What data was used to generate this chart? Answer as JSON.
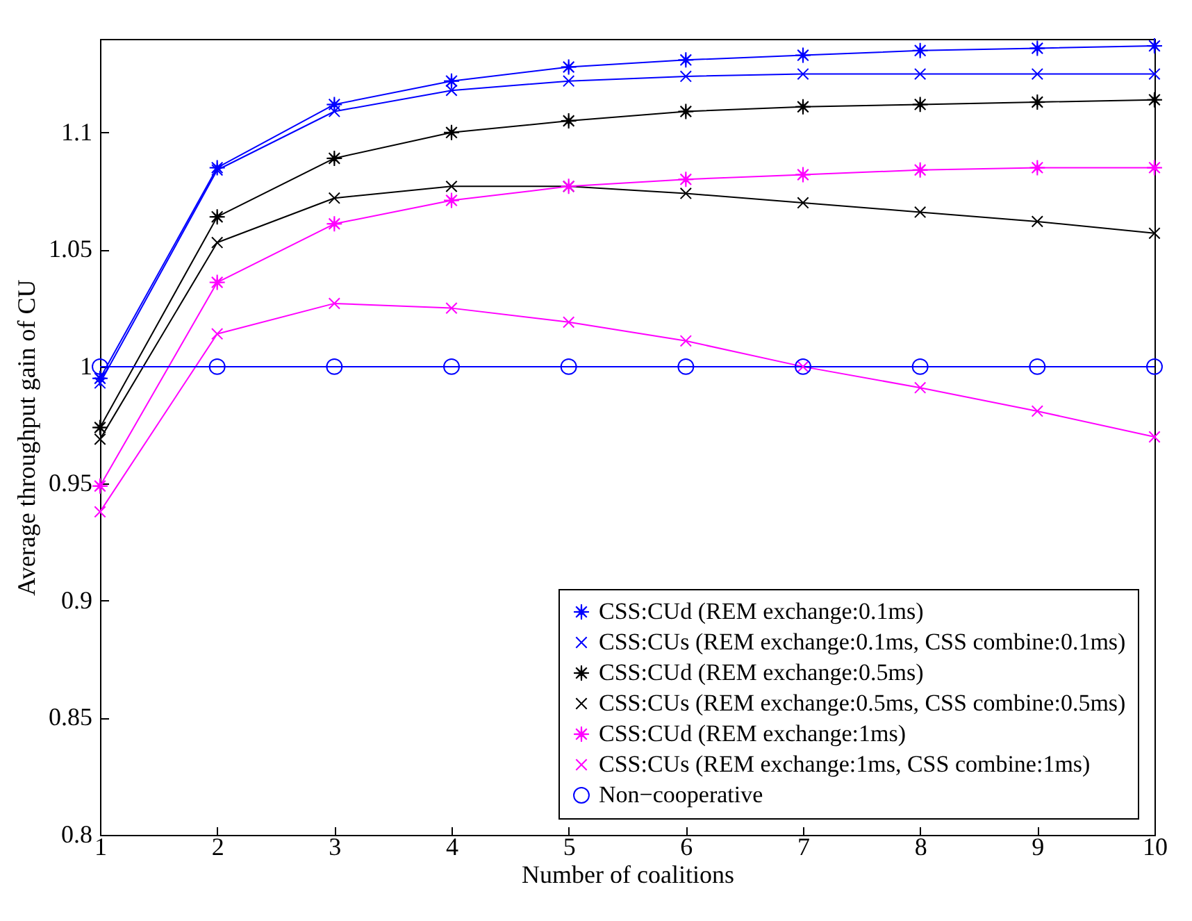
{
  "chart_data": {
    "type": "line",
    "xlabel": "Number of coalitions",
    "ylabel": "Average throughput gain of CU",
    "x": [
      1,
      2,
      3,
      4,
      5,
      6,
      7,
      8,
      9,
      10
    ],
    "series": [
      {
        "name": "CSS:CUd (REM exchange:0.1ms)",
        "color": "#0000ff",
        "marker": "star",
        "values": [
          0.995,
          1.085,
          1.112,
          1.122,
          1.128,
          1.131,
          1.133,
          1.135,
          1.136,
          1.137
        ]
      },
      {
        "name": "CSS:CUs (REM exchange:0.1ms, CSS combine:0.1ms)",
        "color": "#0000ff",
        "marker": "cross",
        "values": [
          0.993,
          1.084,
          1.109,
          1.118,
          1.122,
          1.124,
          1.125,
          1.125,
          1.125,
          1.125
        ]
      },
      {
        "name": "CSS:CUd (REM exchange:0.5ms)",
        "color": "#000000",
        "marker": "star",
        "values": [
          0.974,
          1.064,
          1.089,
          1.1,
          1.105,
          1.109,
          1.111,
          1.112,
          1.113,
          1.114
        ]
      },
      {
        "name": "CSS:CUs (REM exchange:0.5ms, CSS combine:0.5ms)",
        "color": "#000000",
        "marker": "cross",
        "values": [
          0.969,
          1.053,
          1.072,
          1.077,
          1.077,
          1.074,
          1.07,
          1.066,
          1.062,
          1.057
        ]
      },
      {
        "name": "CSS:CUd (REM exchange:1ms)",
        "color": "#ff00ff",
        "marker": "star",
        "values": [
          0.949,
          1.036,
          1.061,
          1.071,
          1.077,
          1.08,
          1.082,
          1.084,
          1.085,
          1.085
        ]
      },
      {
        "name": "CSS:CUs (REM exchange:1ms, CSS combine:1ms)",
        "color": "#ff00ff",
        "marker": "cross",
        "values": [
          0.938,
          1.014,
          1.027,
          1.025,
          1.019,
          1.011,
          1.0,
          0.991,
          0.981,
          0.97
        ]
      },
      {
        "name": "Non−cooperative",
        "color": "#0000ff",
        "marker": "circle",
        "values": [
          1,
          1,
          1,
          1,
          1,
          1,
          1,
          1,
          1,
          1
        ]
      }
    ],
    "xlim": [
      1,
      10
    ],
    "xticks": [
      1,
      2,
      3,
      4,
      5,
      6,
      7,
      8,
      9,
      10
    ],
    "ylim": [
      0.8,
      1.14
    ],
    "yticks": [
      0.8,
      0.85,
      0.9,
      0.95,
      1,
      1.05,
      1.1
    ],
    "grid": false,
    "legend": "bottom right",
    "line_style": "solid"
  }
}
